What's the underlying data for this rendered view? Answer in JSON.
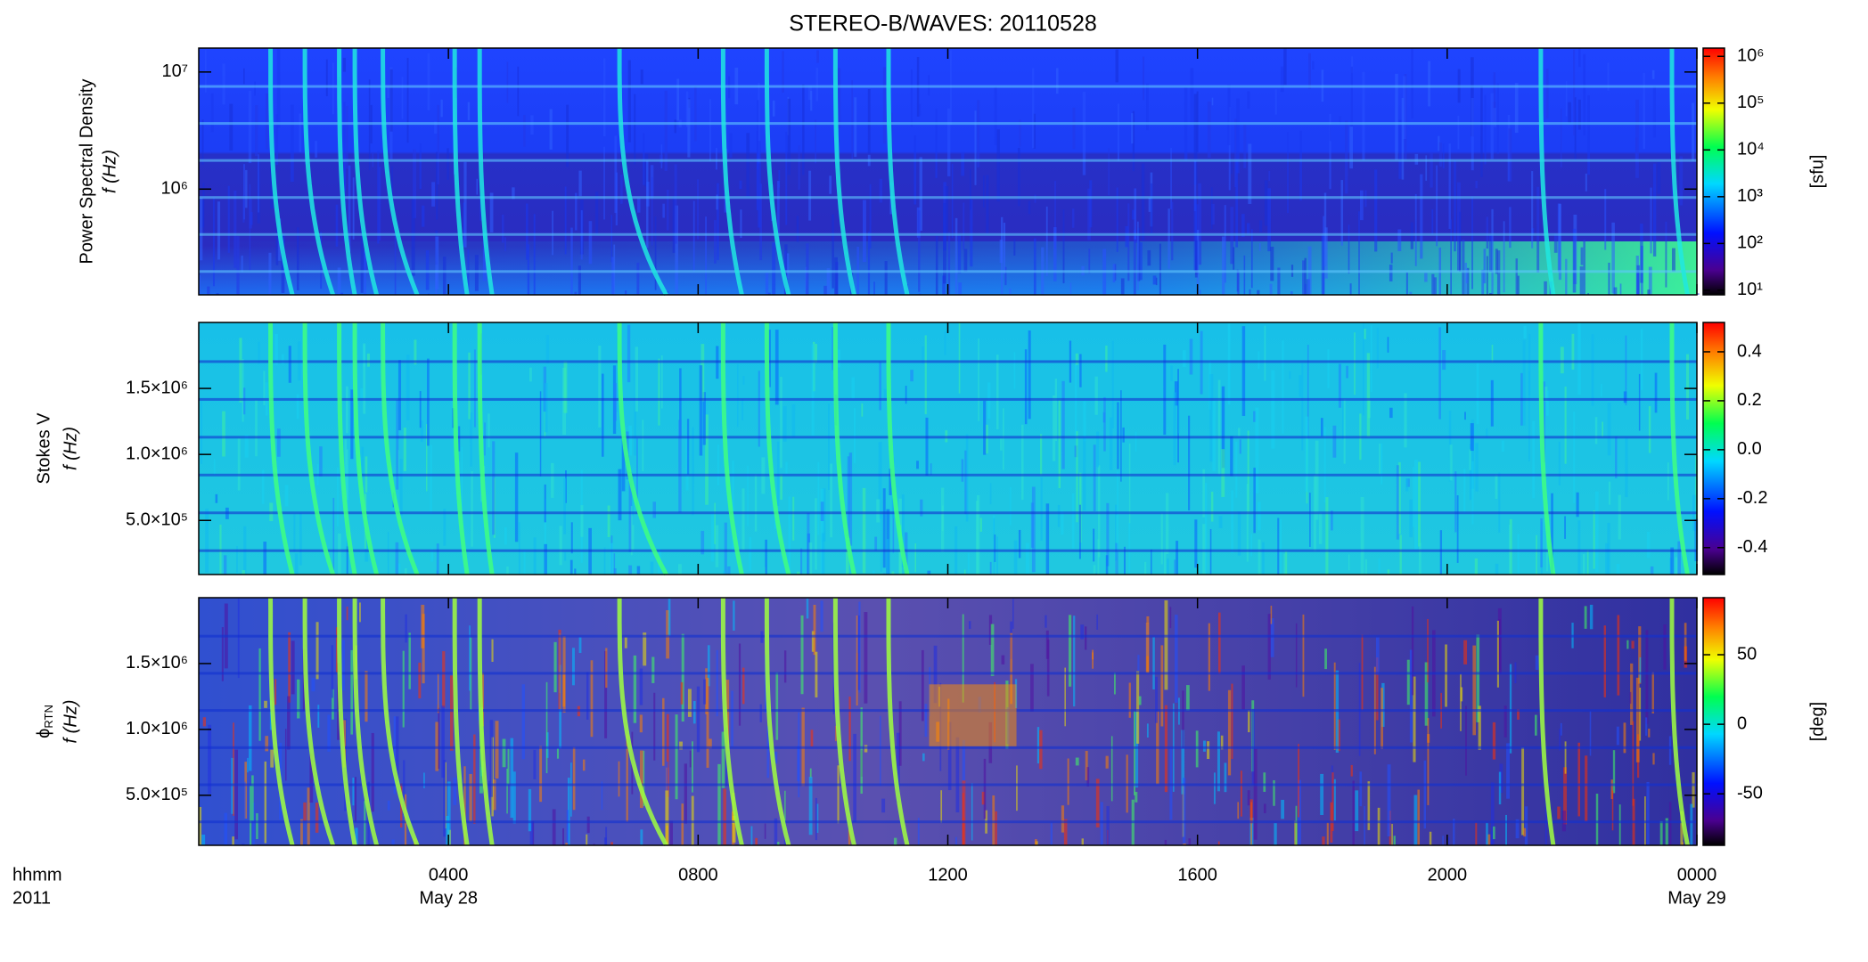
{
  "title": "STEREO-B/WAVES: 20110528",
  "chart_data": [
    {
      "type": "spectrogram",
      "ylabel": "Power Spectral Density",
      "ylabel2": "f (Hz)",
      "ylog": true,
      "ylim": [
        125000,
        16000000
      ],
      "yticks": [
        {
          "value": 1000000,
          "label": "10⁶"
        },
        {
          "value": 10000000,
          "label": "10⁷"
        }
      ],
      "xlim": [
        0,
        24
      ],
      "xticks": [
        4,
        8,
        12,
        16,
        20,
        24
      ],
      "colorbar": {
        "label": "[sfu]",
        "log": true,
        "lim": [
          8,
          1500000
        ],
        "ticks": [
          {
            "value": 10,
            "label": "10¹"
          },
          {
            "value": 100,
            "label": "10²"
          },
          {
            "value": 1000,
            "label": "10³"
          },
          {
            "value": 10000,
            "label": "10⁴"
          },
          {
            "value": 100000,
            "label": "10⁵"
          },
          {
            "value": 1000000,
            "label": "10⁶"
          }
        ]
      }
    },
    {
      "type": "spectrogram",
      "ylabel": "Stokes V",
      "ylabel2": "f (Hz)",
      "ylog": false,
      "ylim": [
        90000,
        2000000
      ],
      "yticks": [
        {
          "value": 500000,
          "label": "5.0×10⁵"
        },
        {
          "value": 1000000,
          "label": "1.0×10⁶"
        },
        {
          "value": 1500000,
          "label": "1.5×10⁶"
        }
      ],
      "xlim": [
        0,
        24
      ],
      "xticks": [
        4,
        8,
        12,
        16,
        20,
        24
      ],
      "colorbar": {
        "log": false,
        "lim": [
          -0.51,
          0.52
        ],
        "ticks": [
          -0.4,
          -0.2,
          {
            "value": 0,
            "label": "0.0"
          },
          0.2,
          0.4
        ]
      }
    },
    {
      "type": "spectrogram",
      "ylabel": "ϕ",
      "ylabel_sub": "RTN",
      "ylabel2": "f (Hz)",
      "ylog": false,
      "ylim": [
        120000,
        2000000
      ],
      "yticks": [
        {
          "value": 500000,
          "label": "5.0×10⁵"
        },
        {
          "value": 1000000,
          "label": "1.0×10⁶"
        },
        {
          "value": 1500000,
          "label": "1.5×10⁶"
        }
      ],
      "xlim": [
        0,
        24
      ],
      "xticks": [
        {
          "value": 4,
          "label": "0400"
        },
        {
          "value": 8,
          "label": "0800"
        },
        {
          "value": 12,
          "label": "1200"
        },
        {
          "value": 16,
          "label": "1600"
        },
        {
          "value": 20,
          "label": "2000"
        },
        {
          "value": 24,
          "label": "0000"
        }
      ],
      "xlabel": "hhmm",
      "xlabel2": "2011",
      "date_labels": [
        {
          "value": 4,
          "label": "May 28"
        },
        {
          "value": 24,
          "label": "May 29"
        }
      ],
      "colorbar": {
        "label": "[deg]",
        "log": false,
        "lim": [
          -87,
          91
        ],
        "ticks": [
          -50,
          0,
          50
        ]
      }
    }
  ]
}
